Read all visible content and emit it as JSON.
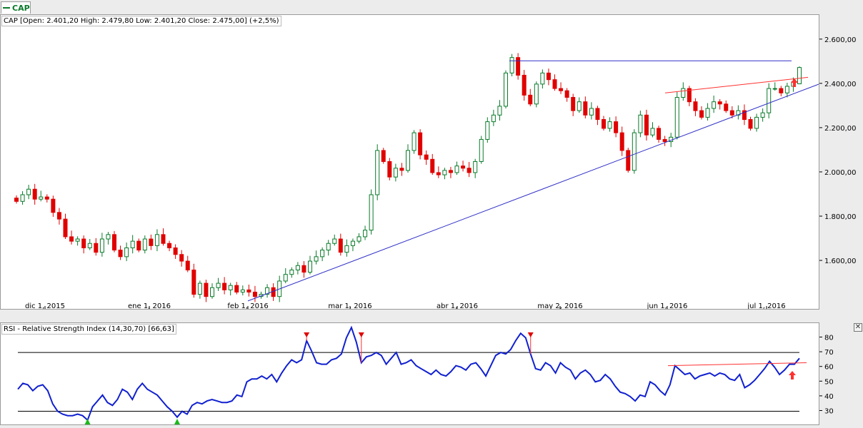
{
  "tab": {
    "label": "CAP",
    "color": "#0a7a2a"
  },
  "legend": {
    "ohlc_text": "CAP [Open: 2.401,20  High: 2.479,80  Low: 2.401,20  Close: 2.475,00] (+2,5%)",
    "rsi_text": "RSI - Relative Strength Index (14,30,70) [66,63]"
  },
  "colors": {
    "up": "#0a7a2a",
    "down": "#e00000",
    "rsi_line": "#1020d0",
    "trendline": "#3030c8",
    "annotation_red": "#ff3030"
  },
  "icons": {
    "close": "close-icon",
    "signal_arrow": "arrow-up-icon",
    "overbought_marker": "triangle-down-icon",
    "oversold_marker": "triangle-up-icon"
  },
  "chart_data": [
    {
      "type": "candlestick",
      "title": "CAP",
      "x_tick_labels": [
        "dic 1, 2015",
        "ene 1, 2016",
        "feb 1, 2016",
        "mar 1, 2016",
        "abr 1, 2016",
        "may 2, 2016",
        "jun 1, 2016",
        "jul 1, 2016"
      ],
      "y_tick_labels": [
        "1.600,00",
        "1.800,00",
        "2.000,00",
        "2.200,00",
        "2.400,00",
        "2.600,00"
      ],
      "y_ticks": [
        1600,
        1800,
        2000,
        2200,
        2400,
        2600
      ],
      "ylim": [
        1410,
        2680
      ],
      "last_bar": {
        "open": 2401.2,
        "high": 2479.8,
        "low": 2401.2,
        "close": 2475.0,
        "change_pct": 2.5
      },
      "closes": [
        1870,
        1900,
        1925,
        1880,
        1890,
        1880,
        1820,
        1790,
        1710,
        1690,
        1700,
        1660,
        1680,
        1640,
        1700,
        1720,
        1650,
        1620,
        1660,
        1690,
        1650,
        1700,
        1670,
        1720,
        1680,
        1660,
        1630,
        1600,
        1560,
        1450,
        1500,
        1440,
        1480,
        1500,
        1470,
        1490,
        1460,
        1470,
        1460,
        1440,
        1450,
        1480,
        1440,
        1510,
        1540,
        1560,
        1580,
        1550,
        1600,
        1620,
        1650,
        1680,
        1700,
        1640,
        1670,
        1690,
        1710,
        1740,
        1900,
        2100,
        2050,
        1980,
        2020,
        2010,
        2100,
        2180,
        2080,
        2060,
        2000,
        1990,
        2010,
        2000,
        2030,
        2020,
        2000,
        2050,
        2150,
        2230,
        2260,
        2300,
        2450,
        2520,
        2440,
        2350,
        2310,
        2400,
        2450,
        2420,
        2380,
        2370,
        2340,
        2280,
        2320,
        2260,
        2290,
        2240,
        2200,
        2230,
        2180,
        2100,
        2010,
        2180,
        2260,
        2170,
        2200,
        2150,
        2140,
        2160,
        2340,
        2380,
        2320,
        2280,
        2250,
        2290,
        2320,
        2310,
        2280,
        2260,
        2280,
        2240,
        2200,
        2250,
        2270,
        2380,
        2380,
        2360,
        2390,
        2410,
        2475
      ],
      "horizontal_line": 2505,
      "trendline_lower": [
        {
          "x": "feb 1, 2016",
          "y": 1420
        },
        {
          "x": "jul 1, 2016",
          "y": 2310
        }
      ],
      "trendline_upper": [
        {
          "x": "jun 1, 2016",
          "y": 2360
        },
        {
          "x": "jul 1, 2016",
          "y": 2410
        }
      ]
    },
    {
      "type": "line",
      "title": "RSI - Relative Strength Index (14,30,70) [66,63]",
      "y_tick_labels": [
        "30",
        "40",
        "50",
        "60",
        "70",
        "80"
      ],
      "y_ticks": [
        30,
        40,
        50,
        60,
        70,
        80
      ],
      "ylim": [
        22,
        88
      ],
      "reference_levels": [
        30,
        70
      ],
      "values": [
        45,
        49,
        48,
        44,
        47,
        48,
        44,
        35,
        30,
        28,
        27,
        27,
        28,
        27,
        24,
        33,
        37,
        41,
        36,
        34,
        38,
        45,
        43,
        38,
        45,
        49,
        45,
        43,
        41,
        37,
        33,
        30,
        26,
        30,
        28,
        34,
        36,
        35,
        37,
        38,
        37,
        36,
        36,
        37,
        41,
        40,
        50,
        52,
        52,
        54,
        52,
        55,
        50,
        56,
        61,
        65,
        63,
        65,
        78,
        71,
        63,
        62,
        62,
        65,
        66,
        69,
        80,
        87,
        77,
        63,
        67,
        68,
        70,
        68,
        62,
        66,
        70,
        62,
        63,
        65,
        61,
        59,
        57,
        55,
        58,
        55,
        54,
        57,
        61,
        60,
        58,
        62,
        63,
        59,
        54,
        61,
        68,
        70,
        69,
        72,
        78,
        83,
        80,
        69,
        59,
        58,
        63,
        61,
        56,
        63,
        60,
        58,
        52,
        56,
        58,
        55,
        50,
        51,
        55,
        52,
        47,
        43,
        42,
        40,
        37,
        41,
        40,
        50,
        48,
        44,
        41,
        48,
        61,
        58,
        55,
        56,
        52,
        54,
        55,
        56,
        54,
        56,
        55,
        52,
        51,
        55,
        46,
        48,
        51,
        55,
        59,
        64,
        60,
        55,
        58,
        62,
        62,
        66
      ],
      "overbought_marker_indices": [
        58,
        69,
        103
      ],
      "oversold_marker_indices": [
        14,
        32
      ],
      "annotation_line": [
        {
          "x": "jun 1, 2016",
          "y": 61
        },
        {
          "x": "jul 1, 2016",
          "y": 63
        }
      ]
    }
  ]
}
